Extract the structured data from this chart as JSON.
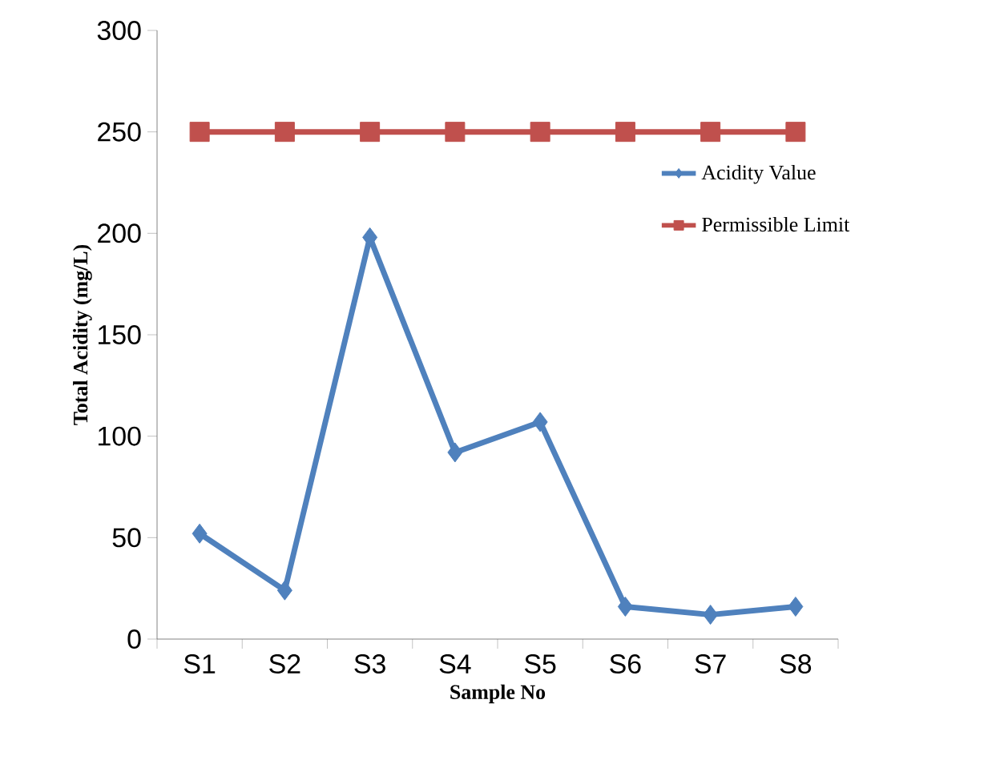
{
  "chart_data": {
    "type": "line",
    "xlabel": "Sample No",
    "ylabel": "Total Acidity  (mg/L)",
    "categories": [
      "S1",
      "S2",
      "S3",
      "S4",
      "S5",
      "S6",
      "S7",
      "S8"
    ],
    "series": [
      {
        "name": "Acidity Value",
        "color": "#4f81bd",
        "marker": "diamond",
        "values": [
          52,
          24,
          198,
          92,
          107,
          16,
          12,
          16
        ]
      },
      {
        "name": "Permissible Limit",
        "color": "#c0504d",
        "marker": "square",
        "values": [
          250,
          250,
          250,
          250,
          250,
          250,
          250,
          250
        ]
      }
    ],
    "ylim": [
      0,
      300
    ],
    "yticks": [
      0,
      50,
      100,
      150,
      200,
      250,
      300
    ],
    "grid": false,
    "legend": "right",
    "line_style": "solid"
  }
}
